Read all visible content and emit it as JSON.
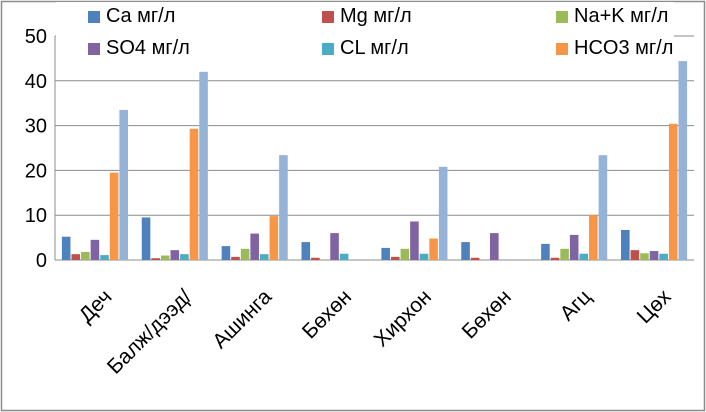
{
  "chart_data": {
    "type": "bar",
    "title": "",
    "xlabel": "",
    "ylabel": "",
    "ylim": [
      0,
      50
    ],
    "yticks": [
      0,
      10,
      20,
      30,
      40,
      50
    ],
    "grid": true,
    "legend_position": "top",
    "categories": [
      "Деч",
      "Балж/дээд/",
      "Ашинга",
      "Бөхөн",
      "Хирхон",
      "Бөхөн",
      "Агц",
      "Цөх"
    ],
    "series": [
      {
        "name": "Ca мг/л",
        "color": "#4f81bd",
        "values": [
          5.2,
          9.5,
          3.1,
          4.0,
          2.7,
          4.0,
          3.6,
          6.7
        ]
      },
      {
        "name": "Mg мг/л",
        "color": "#c0504d",
        "values": [
          1.3,
          0.4,
          0.7,
          0.5,
          0.7,
          0.5,
          0.5,
          2.2
        ]
      },
      {
        "name": "Na+K мг/л",
        "color": "#9bbb59",
        "values": [
          1.8,
          1.0,
          2.5,
          0.0,
          2.5,
          0.0,
          2.5,
          1.5
        ]
      },
      {
        "name": "SO4 мг/л",
        "color": "#8064a2",
        "values": [
          4.5,
          2.2,
          5.9,
          6.0,
          8.6,
          6.0,
          5.6,
          2.0
        ]
      },
      {
        "name": "CL мг/л",
        "color": "#4bacc6",
        "values": [
          1.1,
          1.3,
          1.3,
          1.4,
          1.4,
          0.0,
          1.4,
          1.4
        ]
      },
      {
        "name": "HCO3 мг/л",
        "color": "#f79646",
        "values": [
          19.5,
          29.3,
          9.8,
          0.0,
          4.8,
          0.0,
          10.0,
          30.4
        ]
      },
      {
        "name": "",
        "color": "#95b3d7",
        "values": [
          33.5,
          42.0,
          23.4,
          0.0,
          20.8,
          0.0,
          23.4,
          44.4
        ]
      }
    ]
  }
}
